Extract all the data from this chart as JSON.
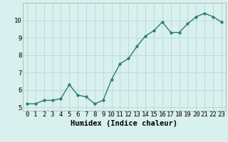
{
  "x": [
    0,
    1,
    2,
    3,
    4,
    5,
    6,
    7,
    8,
    9,
    10,
    11,
    12,
    13,
    14,
    15,
    16,
    17,
    18,
    19,
    20,
    21,
    22,
    23
  ],
  "y": [
    5.2,
    5.2,
    5.4,
    5.4,
    5.5,
    6.3,
    5.7,
    5.6,
    5.2,
    5.4,
    6.6,
    7.5,
    7.8,
    8.5,
    9.1,
    9.4,
    9.9,
    9.3,
    9.3,
    9.8,
    10.2,
    10.4,
    10.2,
    9.9
  ],
  "xlabel": "Humidex (Indice chaleur)",
  "xlim": [
    -0.5,
    23.5
  ],
  "ylim": [
    4.8,
    11.0
  ],
  "yticks": [
    5,
    6,
    7,
    8,
    9,
    10
  ],
  "xticks": [
    0,
    1,
    2,
    3,
    4,
    5,
    6,
    7,
    8,
    9,
    10,
    11,
    12,
    13,
    14,
    15,
    16,
    17,
    18,
    19,
    20,
    21,
    22,
    23
  ],
  "line_color": "#2d7d6e",
  "marker_size": 2.5,
  "bg_color": "#d8f0ee",
  "grid_color": "#b8d8d4",
  "tick_label_fontsize": 6.5,
  "xlabel_fontsize": 7.5,
  "line_width": 1.0
}
